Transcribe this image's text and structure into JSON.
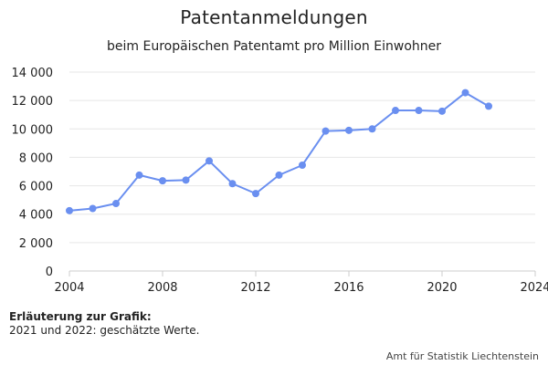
{
  "title": "Patentanmeldungen",
  "subtitle": "beim Europäischen Patentamt pro Million Einwohner",
  "note": {
    "title": "Erläuterung zur Grafik:",
    "text": "2021 und 2022: geschätzte Werte."
  },
  "source": "Amt für Statistik Liechtenstein",
  "colors": {
    "series": "#6a8ff0",
    "grid": "#e6e6e6",
    "axis": "#cccccc"
  },
  "chart_data": {
    "type": "line",
    "title": "Patentanmeldungen",
    "subtitle": "beim Europäischen Patentamt pro Million Einwohner",
    "xlabel": "",
    "ylabel": "",
    "xlim": [
      2004,
      2024
    ],
    "ylim": [
      0,
      14000
    ],
    "grid": true,
    "x_ticks": [
      2004,
      2008,
      2012,
      2016,
      2020,
      2024
    ],
    "y_ticks": [
      0,
      2000,
      4000,
      6000,
      8000,
      10000,
      12000,
      14000
    ],
    "y_tick_labels": [
      "0",
      "2 000",
      "4 000",
      "6 000",
      "8 000",
      "10 000",
      "12 000",
      "14 000"
    ],
    "series": [
      {
        "x": [
          2004,
          2005,
          2006,
          2007,
          2008,
          2009,
          2010,
          2011,
          2012,
          2013,
          2014,
          2015,
          2016,
          2017,
          2018,
          2019,
          2020,
          2021,
          2022
        ],
        "values": [
          4250,
          4400,
          4750,
          6750,
          6350,
          6400,
          7750,
          6150,
          5450,
          6750,
          7450,
          9850,
          9900,
          10000,
          11300,
          11300,
          11250,
          12550,
          11600
        ]
      }
    ]
  }
}
